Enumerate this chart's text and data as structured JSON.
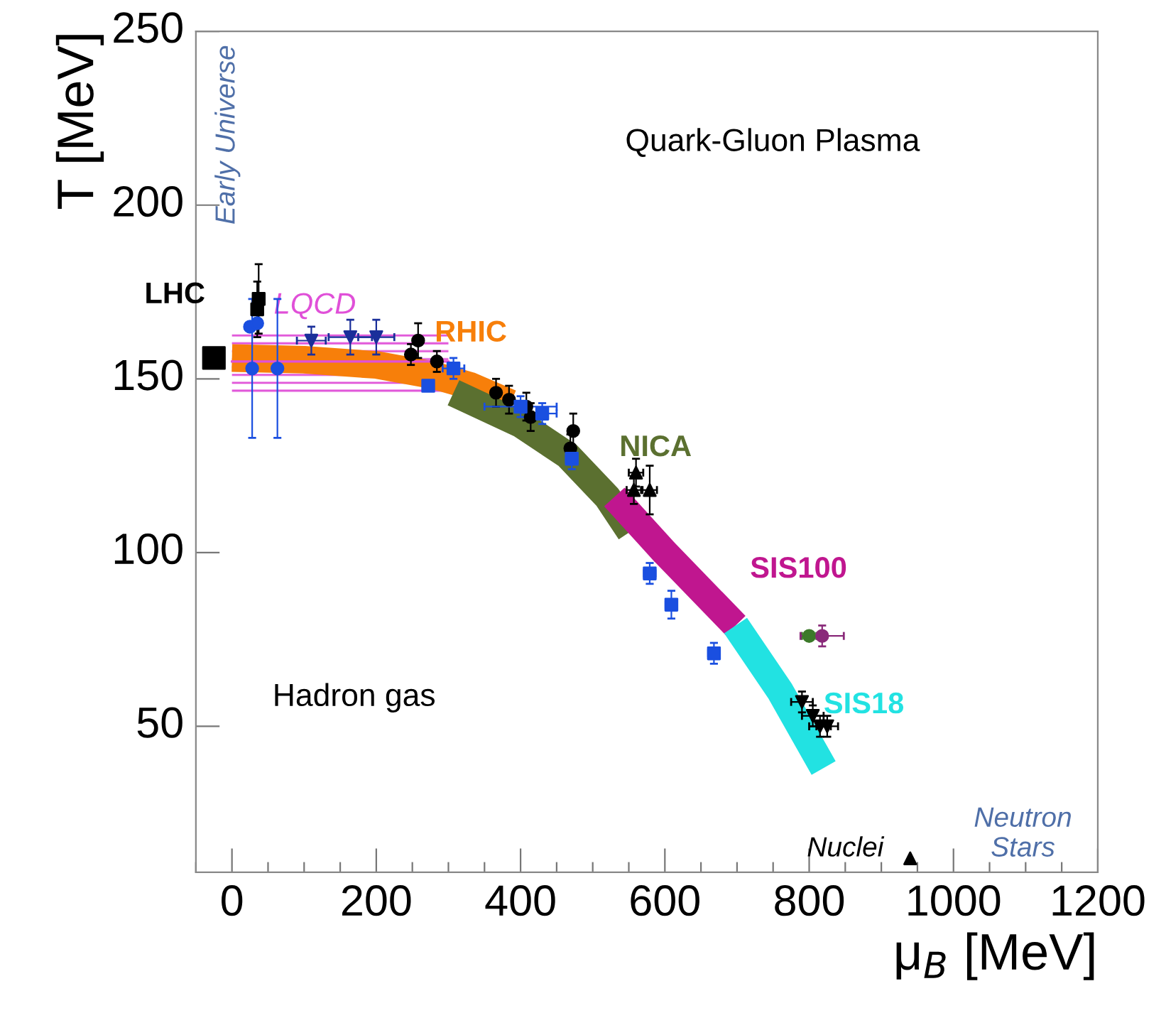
{
  "chart_data": {
    "type": "scatter",
    "xlabel": "μ$_{B}$ [MeV]",
    "ylabel": "T [MeV]",
    "xlim": [
      -50,
      1200
    ],
    "ylim": [
      8,
      250
    ],
    "xticks": [
      0,
      200,
      400,
      600,
      800,
      1000,
      1200
    ],
    "yticks": [
      50,
      100,
      150,
      200,
      250
    ],
    "series": [
      {
        "name": "LQCD",
        "type": "line",
        "color": "#e050d8",
        "x": [
          0,
          300
        ],
        "values": [
          155,
          155
        ],
        "lower": [
          145,
          145
        ],
        "upper": [
          164,
          164
        ]
      },
      {
        "name": "RHIC",
        "type": "line",
        "color": "#f77f0a",
        "x": [
          0,
          100,
          200,
          280,
          330,
          386
        ],
        "values": [
          156,
          155.5,
          154,
          151,
          148,
          143
        ]
      },
      {
        "name": "NICA",
        "type": "line",
        "color": "#5b7030",
        "x": [
          307,
          400,
          465,
          520,
          552
        ],
        "values": [
          146,
          137,
          128,
          116,
          106
        ]
      },
      {
        "name": "SIS100",
        "type": "line",
        "color": "#c0168f",
        "x": [
          530,
          600,
          698
        ],
        "values": [
          116,
          100,
          79
        ]
      },
      {
        "name": "SIS18",
        "type": "line",
        "color": "#22e2e2",
        "x": [
          698,
          760,
          820
        ],
        "values": [
          79,
          60,
          38
        ]
      },
      {
        "name": "LHC",
        "marker": "square",
        "color": "#000000",
        "x": [
          -25
        ],
        "values": [
          156
        ]
      },
      {
        "marker": "square",
        "color": "#000000",
        "x": [
          35,
          37
        ],
        "values": [
          170,
          173
        ],
        "errors": [
          8,
          10
        ]
      },
      {
        "marker": "circle",
        "color": "#1a4fe0",
        "x": [
          25,
          35,
          28,
          63
        ],
        "values": [
          165,
          166,
          153,
          153
        ],
        "errors": [
          null,
          null,
          20,
          20
        ]
      },
      {
        "marker": "triangle_down",
        "color": "#1a2f9a",
        "x": [
          110,
          164,
          200
        ],
        "values": [
          161,
          162,
          162
        ],
        "errors": [
          4,
          5,
          5
        ],
        "xerrors": [
          20,
          30,
          25
        ]
      },
      {
        "marker": "circle",
        "color": "#000000",
        "x": [
          248,
          258,
          284,
          366,
          384,
          408,
          414,
          473,
          469
        ],
        "values": [
          157,
          161,
          155,
          146,
          144,
          142,
          139,
          135,
          130
        ],
        "errors": [
          3,
          5,
          3,
          4,
          4,
          4,
          4,
          5,
          4
        ]
      },
      {
        "marker": "square",
        "color": "#1a4fe0",
        "x": [
          272,
          307,
          400,
          430,
          471,
          579,
          609,
          668
        ],
        "values": [
          148,
          153,
          142,
          140,
          127,
          94,
          85,
          71
        ],
        "errors": [
          null,
          3,
          3,
          3,
          3,
          3,
          4,
          3
        ],
        "xerrors": [
          null,
          15,
          50,
          20,
          8,
          8,
          8,
          8
        ]
      },
      {
        "marker": "triangle",
        "color": "#000000",
        "x": [
          560,
          557,
          579
        ],
        "values": [
          123,
          118,
          118
        ],
        "errors": [
          4,
          4,
          7
        ],
        "xerrors": [
          10,
          10,
          10
        ]
      },
      {
        "marker": "circle",
        "color": "#3c7a2a",
        "x": [
          800
        ],
        "values": [
          76
        ],
        "xerrors": [
          10
        ]
      },
      {
        "marker": "circle",
        "color": "#8a2a7a",
        "x": [
          818
        ],
        "values": [
          76
        ],
        "errors": [
          3
        ],
        "xerrors": [
          30
        ]
      },
      {
        "marker": "triangle_down",
        "color": "#000000",
        "x": [
          790,
          805,
          815,
          825
        ],
        "values": [
          57,
          53,
          50,
          50
        ],
        "errors": [
          3,
          3,
          3,
          3
        ],
        "xerrors": [
          15,
          15,
          15,
          15
        ]
      },
      {
        "marker": "triangle",
        "color": "#000000",
        "x": [
          940
        ],
        "values": [
          12
        ]
      }
    ],
    "annotations": [
      "Quark-Gluon Plasma",
      "Hadron gas",
      "Early Universe",
      "Nuclei",
      "Neutron Stars"
    ]
  }
}
